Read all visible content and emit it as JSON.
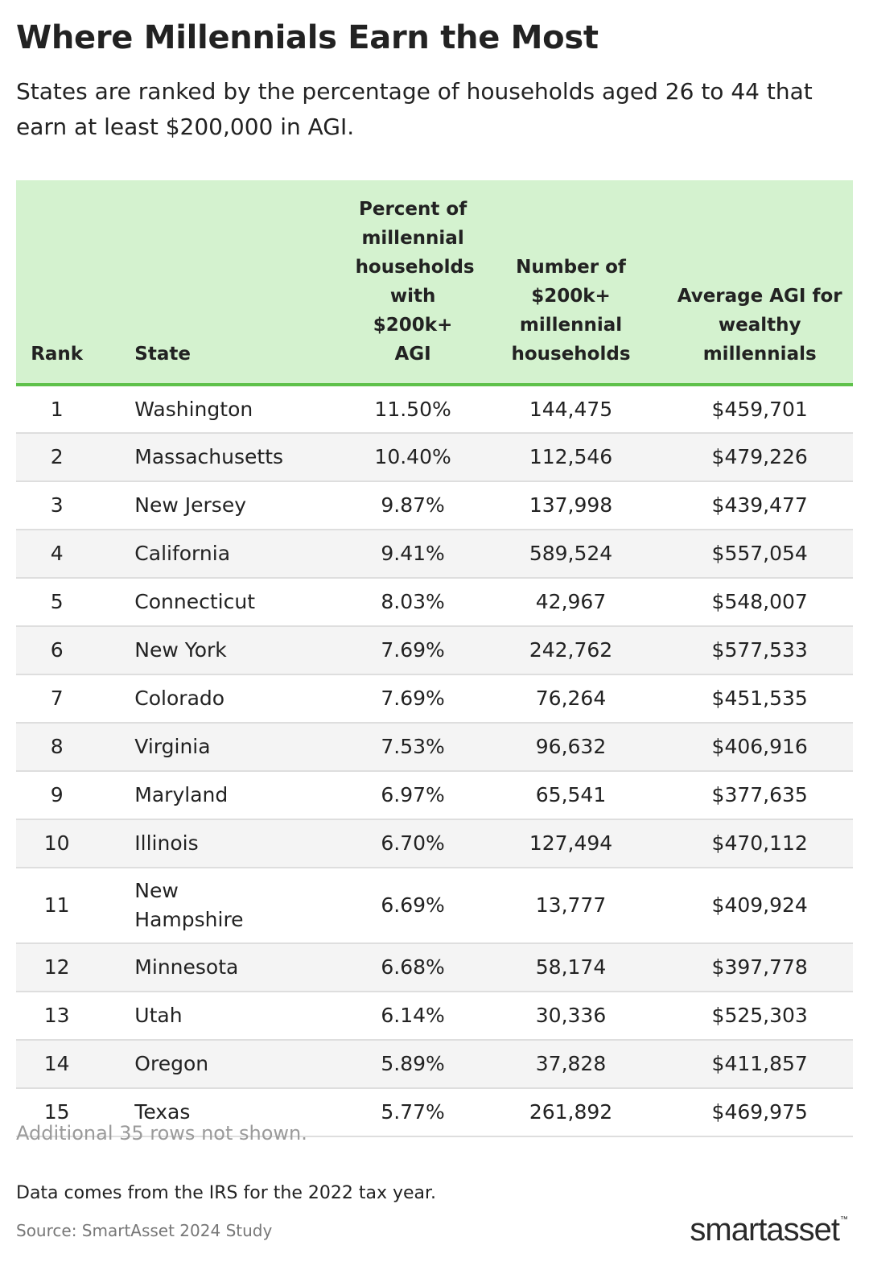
{
  "title": "Where Millennials Earn the Most",
  "subtitle": "States are ranked by the percentage of households aged 26 to 44 that earn at least $200,000 in AGI.",
  "chart_data": {
    "type": "table",
    "columns": [
      "Rank",
      "State",
      "Percent of millennial households with $200k+ AGI",
      "Number of $200k+ millennial households",
      "Average AGI for wealthy millennials"
    ],
    "rows": [
      [
        "1",
        "Washington",
        "11.50%",
        "144,475",
        "$459,701"
      ],
      [
        "2",
        "Massachusetts",
        "10.40%",
        "112,546",
        "$479,226"
      ],
      [
        "3",
        "New Jersey",
        "9.87%",
        "137,998",
        "$439,477"
      ],
      [
        "4",
        "California",
        "9.41%",
        "589,524",
        "$557,054"
      ],
      [
        "5",
        "Connecticut",
        "8.03%",
        "42,967",
        "$548,007"
      ],
      [
        "6",
        "New York",
        "7.69%",
        "242,762",
        "$577,533"
      ],
      [
        "7",
        "Colorado",
        "7.69%",
        "76,264",
        "$451,535"
      ],
      [
        "8",
        "Virginia",
        "7.53%",
        "96,632",
        "$406,916"
      ],
      [
        "9",
        "Maryland",
        "6.97%",
        "65,541",
        "$377,635"
      ],
      [
        "10",
        "Illinois",
        "6.70%",
        "127,494",
        "$470,112"
      ],
      [
        "11",
        "New Hampshire",
        "6.69%",
        "13,777",
        "$409,924"
      ],
      [
        "12",
        "Minnesota",
        "6.68%",
        "58,174",
        "$397,778"
      ],
      [
        "13",
        "Utah",
        "6.14%",
        "30,336",
        "$525,303"
      ],
      [
        "14",
        "Oregon",
        "5.89%",
        "37,828",
        "$411,857"
      ],
      [
        "15",
        "Texas",
        "5.77%",
        "261,892",
        "$469,975"
      ]
    ]
  },
  "footer": {
    "rows_note": "Additional 35 rows not shown.",
    "data_note": "Data comes from the IRS for the 2022 tax year.",
    "source": "Source: SmartAsset 2024 Study"
  },
  "logo": {
    "text": "smartasset",
    "tm": "™"
  },
  "colors": {
    "header_bg": "#d4f2cf",
    "header_rule": "#5ec14a",
    "alt_row": "#f4f4f4",
    "row_rule": "#dedede"
  }
}
